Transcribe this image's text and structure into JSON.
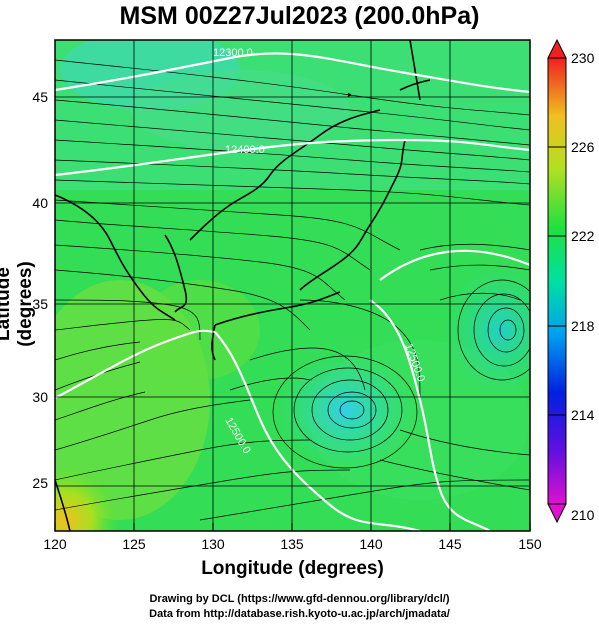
{
  "title": "MSM 00Z27Jul2023 (200.0hPa)",
  "xaxis": {
    "label": "Longitude (degrees)",
    "min": 120,
    "max": 150,
    "ticks": [
      "120",
      "125",
      "130",
      "135",
      "140",
      "145",
      "150"
    ]
  },
  "yaxis": {
    "label": "Latitude  (degrees)",
    "min": 22.4,
    "max": 47.6,
    "ticks": [
      "25",
      "30",
      "35",
      "40",
      "45"
    ]
  },
  "colorbar": {
    "min": 210,
    "max": 230,
    "ticks": [
      "230",
      "226",
      "222",
      "218",
      "214",
      "210"
    ]
  },
  "contour_labels": [
    "12300.0",
    "12400.0",
    "12500.0",
    "12500.0"
  ],
  "credits": {
    "line1": "Drawing by DCL (https://www.gfd-dennou.org/library/dcl/)",
    "line2": "Data from http://database.rish.kyoto-u.ac.jp/arch/jmadata/"
  },
  "chart_data": {
    "type": "heatmap",
    "title": "MSM 00Z27Jul2023 (200.0hPa)",
    "xlabel": "Longitude (degrees)",
    "ylabel": "Latitude  (degrees)",
    "xlim": [
      120,
      150
    ],
    "ylim": [
      22.4,
      47.6
    ],
    "colorbar_range": [
      210,
      230
    ],
    "features": [
      {
        "kind": "anticyclone-center",
        "lon": 138.7,
        "lat": 29.1
      },
      {
        "kind": "cyclone-center",
        "lon": 148.7,
        "lat": 33.6
      },
      {
        "kind": "warm-region",
        "lon": 120.6,
        "lat": 23.2,
        "value": 226
      }
    ]
  }
}
